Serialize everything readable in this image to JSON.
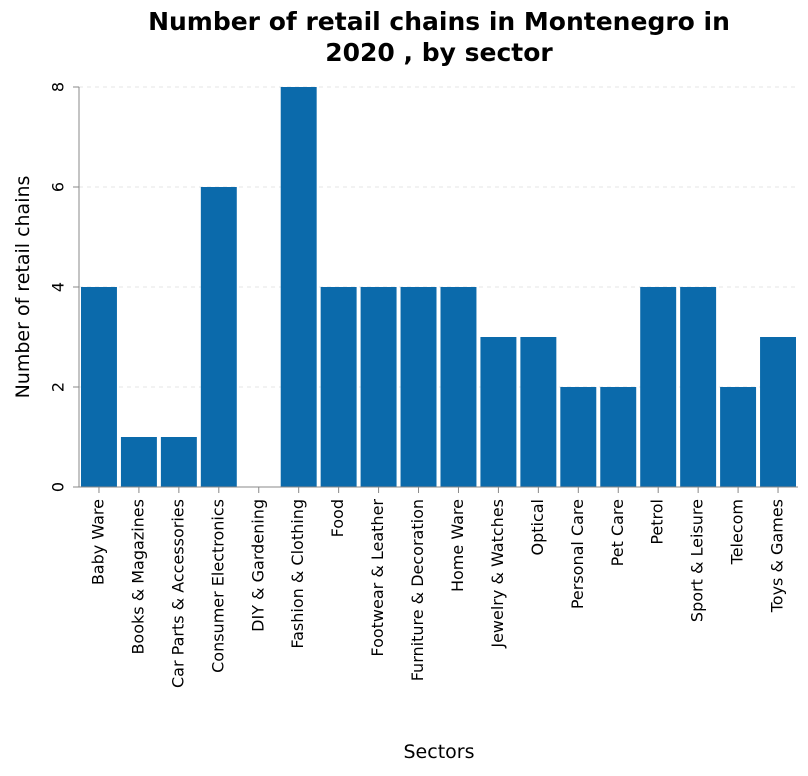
{
  "chart_data": {
    "type": "bar",
    "title": [
      "Number of retail chains in Montenegro in",
      "2020 , by sector"
    ],
    "xlabel": "Sectors",
    "ylabel": "Number of retail chains",
    "categories": [
      "Baby Ware",
      "Books & Magazines",
      "Car Parts & Accessories",
      "Consumer Electronics",
      "DIY & Gardening",
      "Fashion & Clothing",
      "Food",
      "Footwear & Leather",
      "Furniture & Decoration",
      "Home Ware",
      "Jewelry & Watches",
      "Optical",
      "Personal Care",
      "Pet Care",
      "Petrol",
      "Sport & Leisure",
      "Telecom",
      "Toys & Games"
    ],
    "values": [
      4,
      1,
      1,
      6,
      0,
      8,
      4,
      4,
      4,
      4,
      3,
      3,
      2,
      2,
      4,
      4,
      2,
      3
    ],
    "ylim": [
      0,
      8
    ],
    "yticks": [
      0,
      2,
      4,
      6,
      8
    ],
    "grid": true,
    "bar_color": "#0b6aab"
  }
}
